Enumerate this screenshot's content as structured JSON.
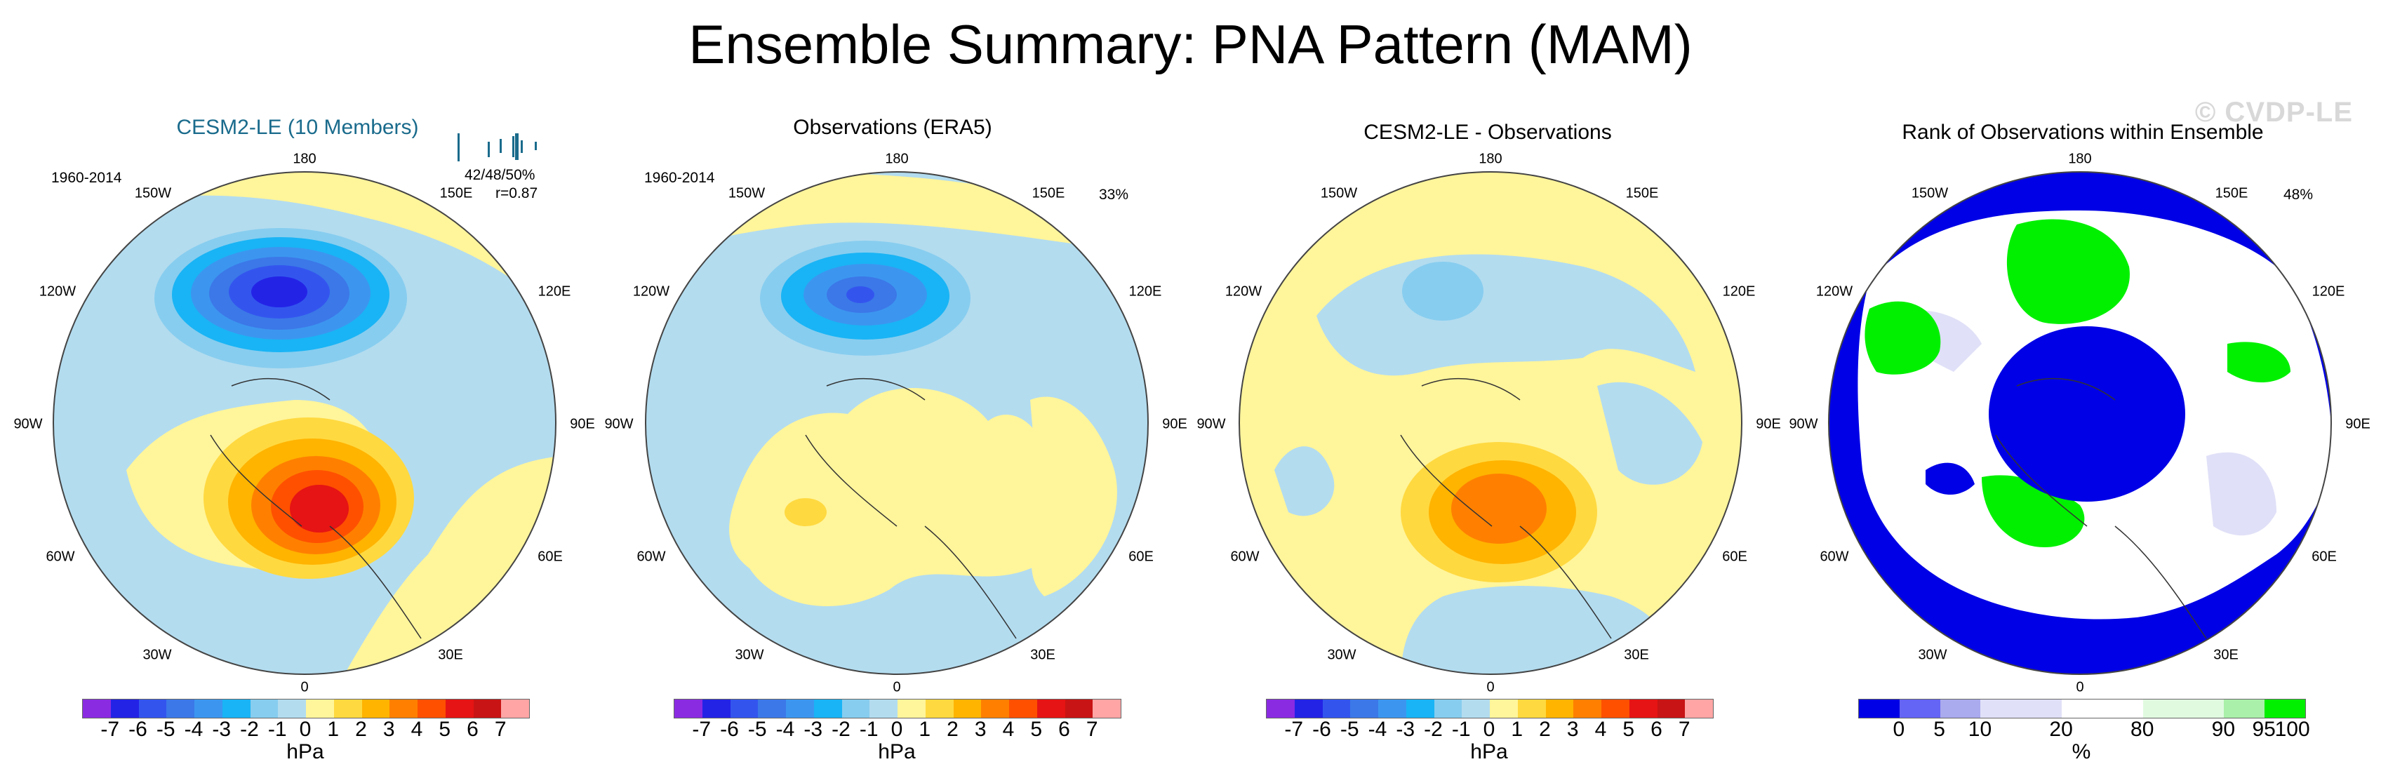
{
  "title": "Ensemble Summary: PNA Pattern (MAM)",
  "watermark": "© CVDP-LE",
  "lon_labels": {
    "top": "180",
    "bottom": "0",
    "upper_left": "150W",
    "upper_right": "150E",
    "mid_upper_left": "120W",
    "mid_upper_right": "120E",
    "left": "90W",
    "right": "90E",
    "mid_lower_left": "60W",
    "mid_lower_right": "60E",
    "lower_left": "30W",
    "lower_right": "30E"
  },
  "colors": {
    "ocean_default": "#b3dcef",
    "land_outline": "#222222"
  },
  "hpa_colorbar": {
    "colors": [
      "#8a2be2",
      "#2323e6",
      "#3355ee",
      "#3c78e8",
      "#3c96f0",
      "#19b4f5",
      "#87cdef",
      "#b3dcef",
      "#fff59b",
      "#ffd940",
      "#ffb400",
      "#ff8000",
      "#ff5000",
      "#e61414",
      "#c81414",
      "#ffa5a5"
    ],
    "ticks": [
      "-7",
      "-6",
      "-5",
      "-4",
      "-3",
      "-2",
      "-1",
      "0",
      "1",
      "2",
      "3",
      "4",
      "5",
      "6",
      "7"
    ],
    "unit": "hPa"
  },
  "rank_colorbar": {
    "colors": [
      "#0000e6",
      "#6464f5",
      "#aaaaee",
      "#e0e0f8",
      "#e0e0f8",
      "#ffffff",
      "#ffffff",
      "#e0fae0",
      "#e0fae0",
      "#aaf0aa",
      "#00f000"
    ],
    "ticks": [
      "0",
      "5",
      "10",
      "20",
      "80",
      "90",
      "95",
      "100"
    ],
    "unit": "%"
  },
  "panels": [
    {
      "title": "CESM2-LE (10 Members)",
      "period": "1960-2014",
      "stats": "42/48/50%",
      "corr": "r=0.87",
      "variance": ""
    },
    {
      "title": "Observations (ERA5)",
      "period": "1960-2014",
      "stats": "",
      "corr": "",
      "variance": "33%"
    },
    {
      "title": "CESM2-LE - Observations",
      "period": "",
      "stats": "",
      "corr": "",
      "variance": ""
    },
    {
      "title": "Rank of Observations within Ensemble",
      "period": "",
      "stats": "",
      "corr": "",
      "variance": "48%"
    }
  ]
}
